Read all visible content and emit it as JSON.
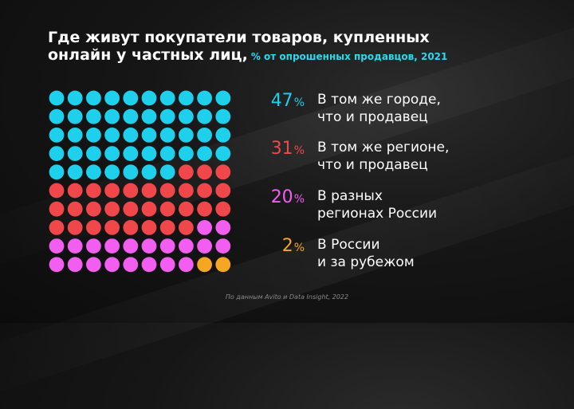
{
  "title": {
    "line1": "Где живут покупатели товаров, купленных",
    "line2": "онлайн у частных лиц,",
    "subtitle": "% от опрошенных продавцов, 2021"
  },
  "colors": {
    "same_city": "#1fd0ec",
    "same_region": "#f0484a",
    "other_regions": "#f25ff0",
    "abroad": "#f5a623"
  },
  "chart_data": {
    "type": "waffle",
    "grid": [
      10,
      10
    ],
    "unit": "%",
    "categories": [
      "В том же городе, что и продавец",
      "В том же регионе, что и продавец",
      "В разных регионах России",
      "В России и за рубежом"
    ],
    "values": [
      47,
      31,
      20,
      2
    ],
    "legend": [
      {
        "value": "47",
        "unit": "%",
        "line1": "В том же городе,",
        "line2": "что и продавец",
        "color": "#1fd0ec"
      },
      {
        "value": "31",
        "unit": "%",
        "line1": "В том же регионе,",
        "line2": "что и продавец",
        "color": "#f0484a"
      },
      {
        "value": "20",
        "unit": "%",
        "line1": "В разных",
        "line2": "регионах России",
        "color": "#f25ff0"
      },
      {
        "value": "2",
        "unit": "%",
        "line1": "В России",
        "line2": "и за рубежом",
        "color": "#f5a623"
      }
    ]
  },
  "source": "По данным Avito и Data Insight, 2022"
}
